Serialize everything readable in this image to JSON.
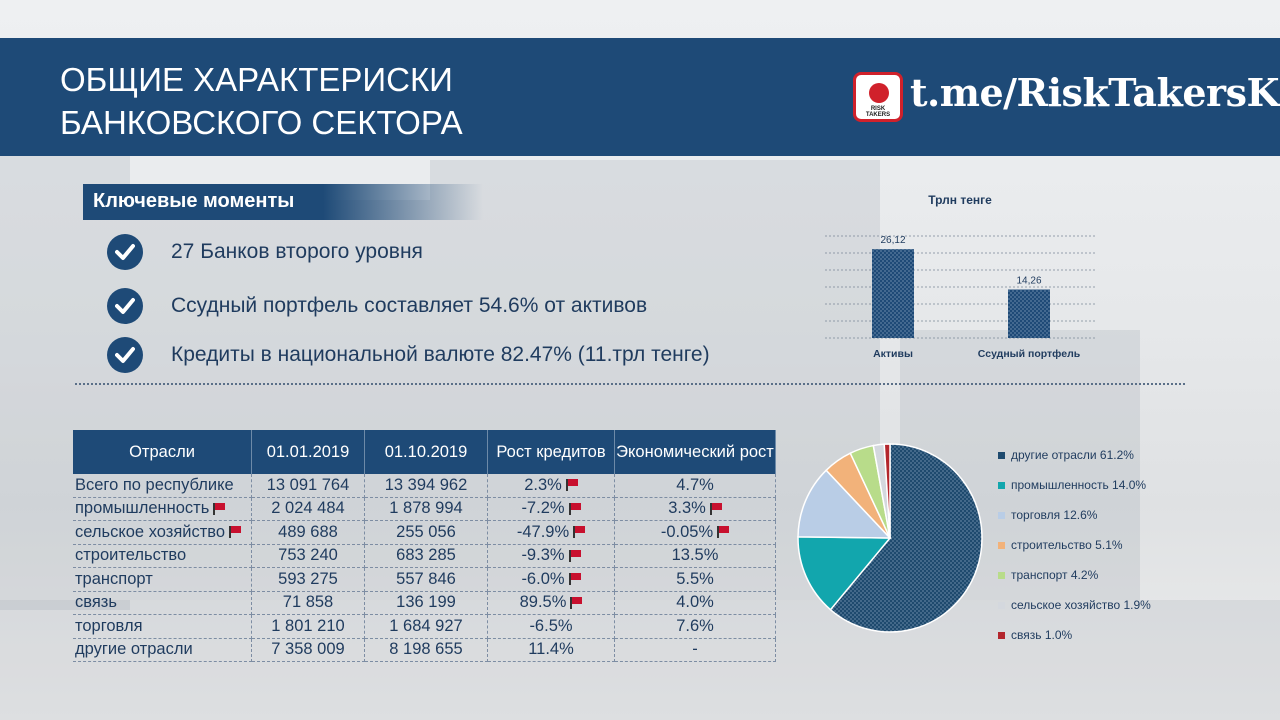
{
  "header": {
    "title_line1": "ОБЩИЕ ХАРАКТЕРИСКИ",
    "title_line2": "БАНКОВСКОГО СЕКТОРА",
    "logo_caption": "RISK TAKERS",
    "channel": "t.me/RiskTakersKZ"
  },
  "key_points": {
    "heading": "Ключевые моменты",
    "items": [
      "27 Банков второго уровня",
      "Ссудный портфель составляет 54.6% от активов",
      "Кредиты в национальной валюте 82.47% (11.трл тенге)"
    ]
  },
  "colors": {
    "brand": "#1e4a77",
    "flag": "#c8102e"
  },
  "table": {
    "headers": [
      "Отрасли",
      "01.01.2019",
      "01.10.2019",
      "Рост кредитов",
      "Экономический рост"
    ],
    "rows": [
      [
        "Всего по республике",
        "13 091 764",
        "13 394 962",
        "2.3%",
        "4.7%"
      ],
      [
        "промышленность",
        "2 024 484",
        "1 878 994",
        "-7.2%",
        "3.3%"
      ],
      [
        "сельское хозяйство",
        "489 688",
        "255 056",
        "-47.9%",
        "-0.05%"
      ],
      [
        "строительство",
        "753 240",
        "683 285",
        "-9.3%",
        "13.5%"
      ],
      [
        "транспорт",
        "593 275",
        "557 846",
        "-6.0%",
        "5.5%"
      ],
      [
        "связь",
        "71 858",
        "136 199",
        "89.5%",
        "4.0%"
      ],
      [
        "торговля",
        "1 801 210",
        "1 684 927",
        "-6.5%",
        "7.6%"
      ],
      [
        "другие отрасли",
        "7 358 009",
        "8 198 655",
        "11.4%",
        "-"
      ]
    ],
    "flags": [
      [
        false,
        false,
        false,
        true,
        false
      ],
      [
        true,
        false,
        false,
        true,
        true
      ],
      [
        true,
        false,
        false,
        true,
        true
      ],
      [
        false,
        false,
        false,
        true,
        false
      ],
      [
        false,
        false,
        false,
        true,
        false
      ],
      [
        false,
        false,
        false,
        true,
        false
      ],
      [
        false,
        false,
        false,
        false,
        false
      ],
      [
        false,
        false,
        false,
        false,
        false
      ]
    ]
  },
  "chart_data": [
    {
      "type": "bar",
      "title": "Трлн тенге",
      "categories": [
        "Активы",
        "Ссудный портфель"
      ],
      "values": [
        26.12,
        14.26
      ],
      "value_labels": [
        "26,12",
        "14,26"
      ],
      "ylim": [
        0,
        30
      ],
      "grid": true,
      "color": "#1e4a77"
    },
    {
      "type": "pie",
      "labels": [
        "другие отрасли 61.2%",
        "промышленность 14.0%",
        "торговля 12.6%",
        "строительство 5.1%",
        "транспорт 4.2%",
        "сельское хозяйство 1.9%",
        "связь  1.0%"
      ],
      "values": [
        61.2,
        14.0,
        12.6,
        5.1,
        4.2,
        1.9,
        1.0
      ],
      "colors": [
        "#1e4a6e",
        "#12a6ad",
        "#b9cde6",
        "#f2b27a",
        "#b8dc8a",
        "#d4d8de",
        "#b3262d"
      ],
      "legend": "right"
    }
  ]
}
